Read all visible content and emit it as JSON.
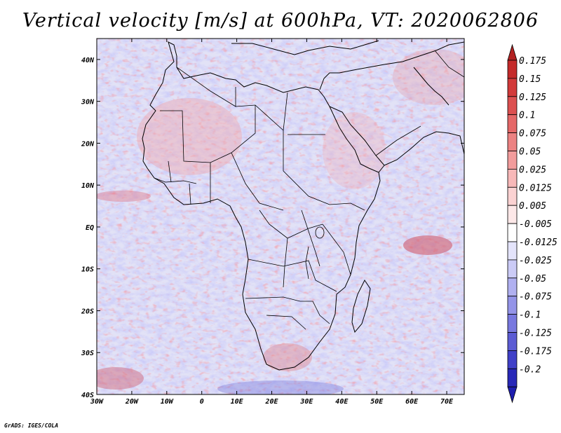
{
  "title": "Vertical velocity [m/s] at 600hPa, VT: 2020062806",
  "credit": "GrADS: IGES/COLA",
  "chart_data": {
    "type": "heatmap",
    "title": "Vertical velocity [m/s] at 600hPa, VT: 2020062806",
    "variable": "Vertical velocity",
    "units": "m/s",
    "level": "600hPa",
    "valid_time": "2020062806",
    "x_range": [
      -30,
      75
    ],
    "y_range": [
      -40,
      45
    ],
    "x_ticks": [
      {
        "value": -30,
        "label": "30W"
      },
      {
        "value": -20,
        "label": "20W"
      },
      {
        "value": -10,
        "label": "10W"
      },
      {
        "value": 0,
        "label": "0"
      },
      {
        "value": 10,
        "label": "10E"
      },
      {
        "value": 20,
        "label": "20E"
      },
      {
        "value": 30,
        "label": "30E"
      },
      {
        "value": 40,
        "label": "40E"
      },
      {
        "value": 50,
        "label": "50E"
      },
      {
        "value": 60,
        "label": "60E"
      },
      {
        "value": 70,
        "label": "70E"
      }
    ],
    "y_ticks": [
      {
        "value": 40,
        "label": "40N"
      },
      {
        "value": 30,
        "label": "30N"
      },
      {
        "value": 20,
        "label": "20N"
      },
      {
        "value": 10,
        "label": "10N"
      },
      {
        "value": 0,
        "label": "EQ"
      },
      {
        "value": -10,
        "label": "10S"
      },
      {
        "value": -20,
        "label": "20S"
      },
      {
        "value": -30,
        "label": "30S"
      },
      {
        "value": -40,
        "label": "40S"
      }
    ],
    "colorbar": [
      {
        "label": "0.175",
        "color": "#c42a2a"
      },
      {
        "label": "0.15",
        "color": "#d23a3a"
      },
      {
        "label": "0.125",
        "color": "#dc5050"
      },
      {
        "label": "0.1",
        "color": "#e56868"
      },
      {
        "label": "0.075",
        "color": "#ec8282"
      },
      {
        "label": "0.05",
        "color": "#f29c9c"
      },
      {
        "label": "0.025",
        "color": "#f7b8b8"
      },
      {
        "label": "0.0125",
        "color": "#fbd2d2"
      },
      {
        "label": "0.005",
        "color": "#fde8e8"
      },
      {
        "label": "-0.005",
        "color": "#ffffff"
      },
      {
        "label": "-0.0125",
        "color": "#e4e4fb"
      },
      {
        "label": "-0.025",
        "color": "#cbcbf6"
      },
      {
        "label": "-0.05",
        "color": "#b0b0f0"
      },
      {
        "label": "-0.075",
        "color": "#9494e8"
      },
      {
        "label": "-0.1",
        "color": "#7878df"
      },
      {
        "label": "-0.125",
        "color": "#5c5cd4"
      },
      {
        "label": "-0.175",
        "color": "#4040c8"
      },
      {
        "label": "-0.2",
        "color": "#2828b8"
      }
    ],
    "colorbar_top_color": "#b22222",
    "colorbar_bottom_color": "#1e1eae"
  }
}
